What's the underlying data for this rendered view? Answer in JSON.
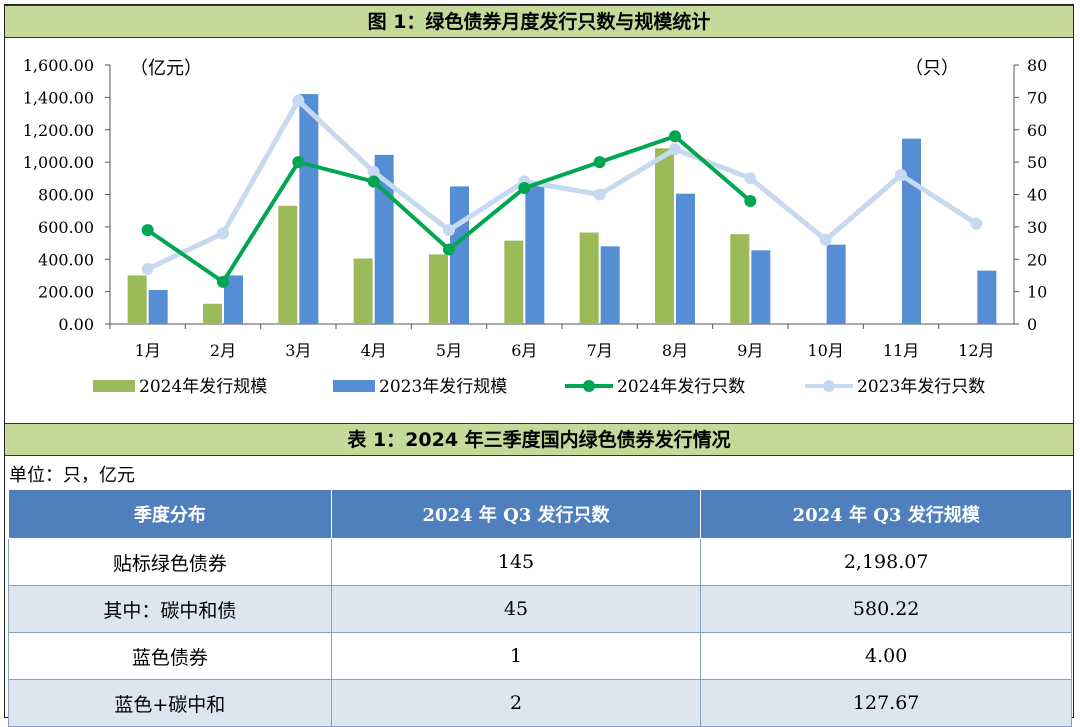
{
  "figure_title": "图 1：绿色债券月度发行只数与规模统计",
  "table_title": "表 1：2024 年三季度国内绿色债券发行情况",
  "unit_note": "单位：只，亿元",
  "chart_data": {
    "type": "bar",
    "title": "图 1：绿色债券月度发行只数与规模统计",
    "categories": [
      "1月",
      "2月",
      "3月",
      "4月",
      "5月",
      "6月",
      "7月",
      "8月",
      "9月",
      "10月",
      "11月",
      "12月"
    ],
    "left_axis": {
      "unit_label": "（亿元）",
      "ylim": [
        0,
        1600
      ],
      "ticks": [
        "0.00",
        "200.00",
        "400.00",
        "600.00",
        "800.00",
        "1,000.00",
        "1,200.00",
        "1,400.00",
        "1,600.00"
      ]
    },
    "right_axis": {
      "unit_label": "（只）",
      "ylim": [
        0,
        80
      ],
      "ticks": [
        "0",
        "10",
        "20",
        "30",
        "40",
        "50",
        "60",
        "70",
        "80"
      ]
    },
    "series": [
      {
        "name": "2024年发行规模",
        "kind": "bar",
        "axis": "left",
        "color": "#9bbb59",
        "values": [
          300,
          125,
          730,
          405,
          430,
          515,
          565,
          1085,
          555,
          null,
          null,
          null
        ]
      },
      {
        "name": "2023年发行规模",
        "kind": "bar",
        "axis": "left",
        "color": "#558ed5",
        "values": [
          210,
          300,
          1420,
          1045,
          850,
          870,
          480,
          805,
          455,
          490,
          1145,
          330
        ]
      },
      {
        "name": "2024年发行只数",
        "kind": "line",
        "axis": "right",
        "color": "#00a651",
        "values": [
          29,
          13,
          50,
          44,
          23,
          42,
          50,
          58,
          38,
          null,
          null,
          null
        ]
      },
      {
        "name": "2023年发行只数",
        "kind": "line",
        "axis": "right",
        "color": "#c6d9f1",
        "values": [
          17,
          28,
          69,
          47,
          29,
          44,
          40,
          54,
          45,
          26,
          46,
          31
        ]
      }
    ],
    "grid": false,
    "legend": "bottom"
  },
  "table": {
    "headers": [
      "季度分布",
      "2024 年 Q3 发行只数",
      "2024 年 Q3 发行规模"
    ],
    "rows": [
      [
        "贴标绿色债券",
        "145",
        "2,198.07"
      ],
      [
        "其中：碳中和债",
        "45",
        "580.22"
      ],
      [
        "蓝色债券",
        "1",
        "4.00"
      ],
      [
        "蓝色+碳中和",
        "2",
        "127.67"
      ]
    ]
  }
}
